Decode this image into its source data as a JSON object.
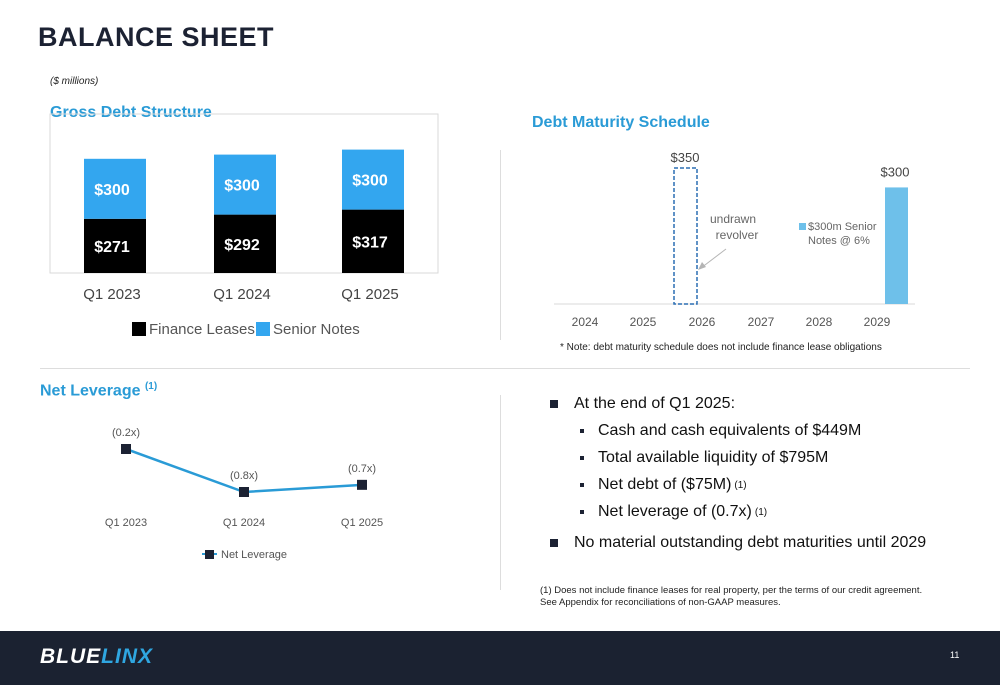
{
  "header": {
    "title": "BALANCE SHEET",
    "units": "($ millions)"
  },
  "gross_debt": {
    "title": "Gross Debt Structure"
  },
  "maturity": {
    "title": "Debt Maturity Schedule",
    "revolver_annotation_1": "undrawn",
    "revolver_annotation_2": "revolver",
    "note": "* Note:  debt maturity schedule does not include finance lease obligations"
  },
  "net_leverage": {
    "title": "Net Leverage",
    "title_sup": "(1)"
  },
  "bullets": {
    "main1": "At the end of Q1 2025:",
    "sub1": "Cash and cash equivalents of $449M",
    "sub2": "Total available liquidity of $795M",
    "sub3": "Net debt of ($75M)",
    "sub3_sup": "(1)",
    "sub4": "Net leverage of (0.7x)",
    "sub4_sup": "(1)",
    "main2": "No material outstanding debt maturities until 2029"
  },
  "footnote": {
    "line1": "(1)  Does not include finance leases for real property, per the terms of our credit agreement.",
    "line2": "See Appendix for reconciliations of non-GAAP measures."
  },
  "footer": {
    "logo_part1": "BLUE",
    "logo_part2": "LINX",
    "page_number": "11"
  },
  "colors": {
    "accent": "#2a9bd6",
    "senior_notes": "#33a6ef",
    "finance_leases": "#000000",
    "maturity_bar": "#6ec0ea",
    "leverage_line": "#2a9bd6",
    "leverage_marker": "#1c2233",
    "footer_bg": "#1b2231"
  },
  "chart_data": [
    {
      "type": "bar",
      "stacked": true,
      "categories": [
        "Q1 2023",
        "Q1 2024",
        "Q1 2025"
      ],
      "series": [
        {
          "name": "Finance Leases",
          "values": [
            271,
            292,
            317
          ],
          "labels": [
            "$271",
            "$292",
            "$317"
          ]
        },
        {
          "name": "Senior Notes",
          "values": [
            300,
            300,
            300
          ],
          "labels": [
            "$300",
            "$300",
            "$300"
          ]
        }
      ],
      "legend": "bottom"
    },
    {
      "type": "bar",
      "categories": [
        "2024",
        "2025",
        "2026",
        "2027",
        "2028",
        "2029"
      ],
      "series": [
        {
          "name": "undrawn revolver",
          "values": [
            0,
            0,
            350,
            0,
            0,
            0
          ],
          "labels": [
            "",
            "",
            "$350",
            "",
            "",
            ""
          ],
          "style": "dashed outline"
        },
        {
          "name": "$300m Senior Notes @ 6%",
          "values": [
            0,
            0,
            0,
            0,
            0,
            300
          ],
          "labels": [
            "",
            "",
            "",
            "",
            "",
            "$300"
          ]
        }
      ],
      "legend_lines": [
        "$300m Senior",
        "Notes @ 6%"
      ],
      "legend": "right"
    },
    {
      "type": "line",
      "categories": [
        "Q1 2023",
        "Q1 2024",
        "Q1 2025"
      ],
      "series": [
        {
          "name": "Net Leverage",
          "values": [
            -0.2,
            -0.8,
            -0.7
          ],
          "labels": [
            "(0.2x)",
            "(0.8x)",
            "(0.7x)"
          ]
        }
      ],
      "legend": "bottom"
    }
  ]
}
